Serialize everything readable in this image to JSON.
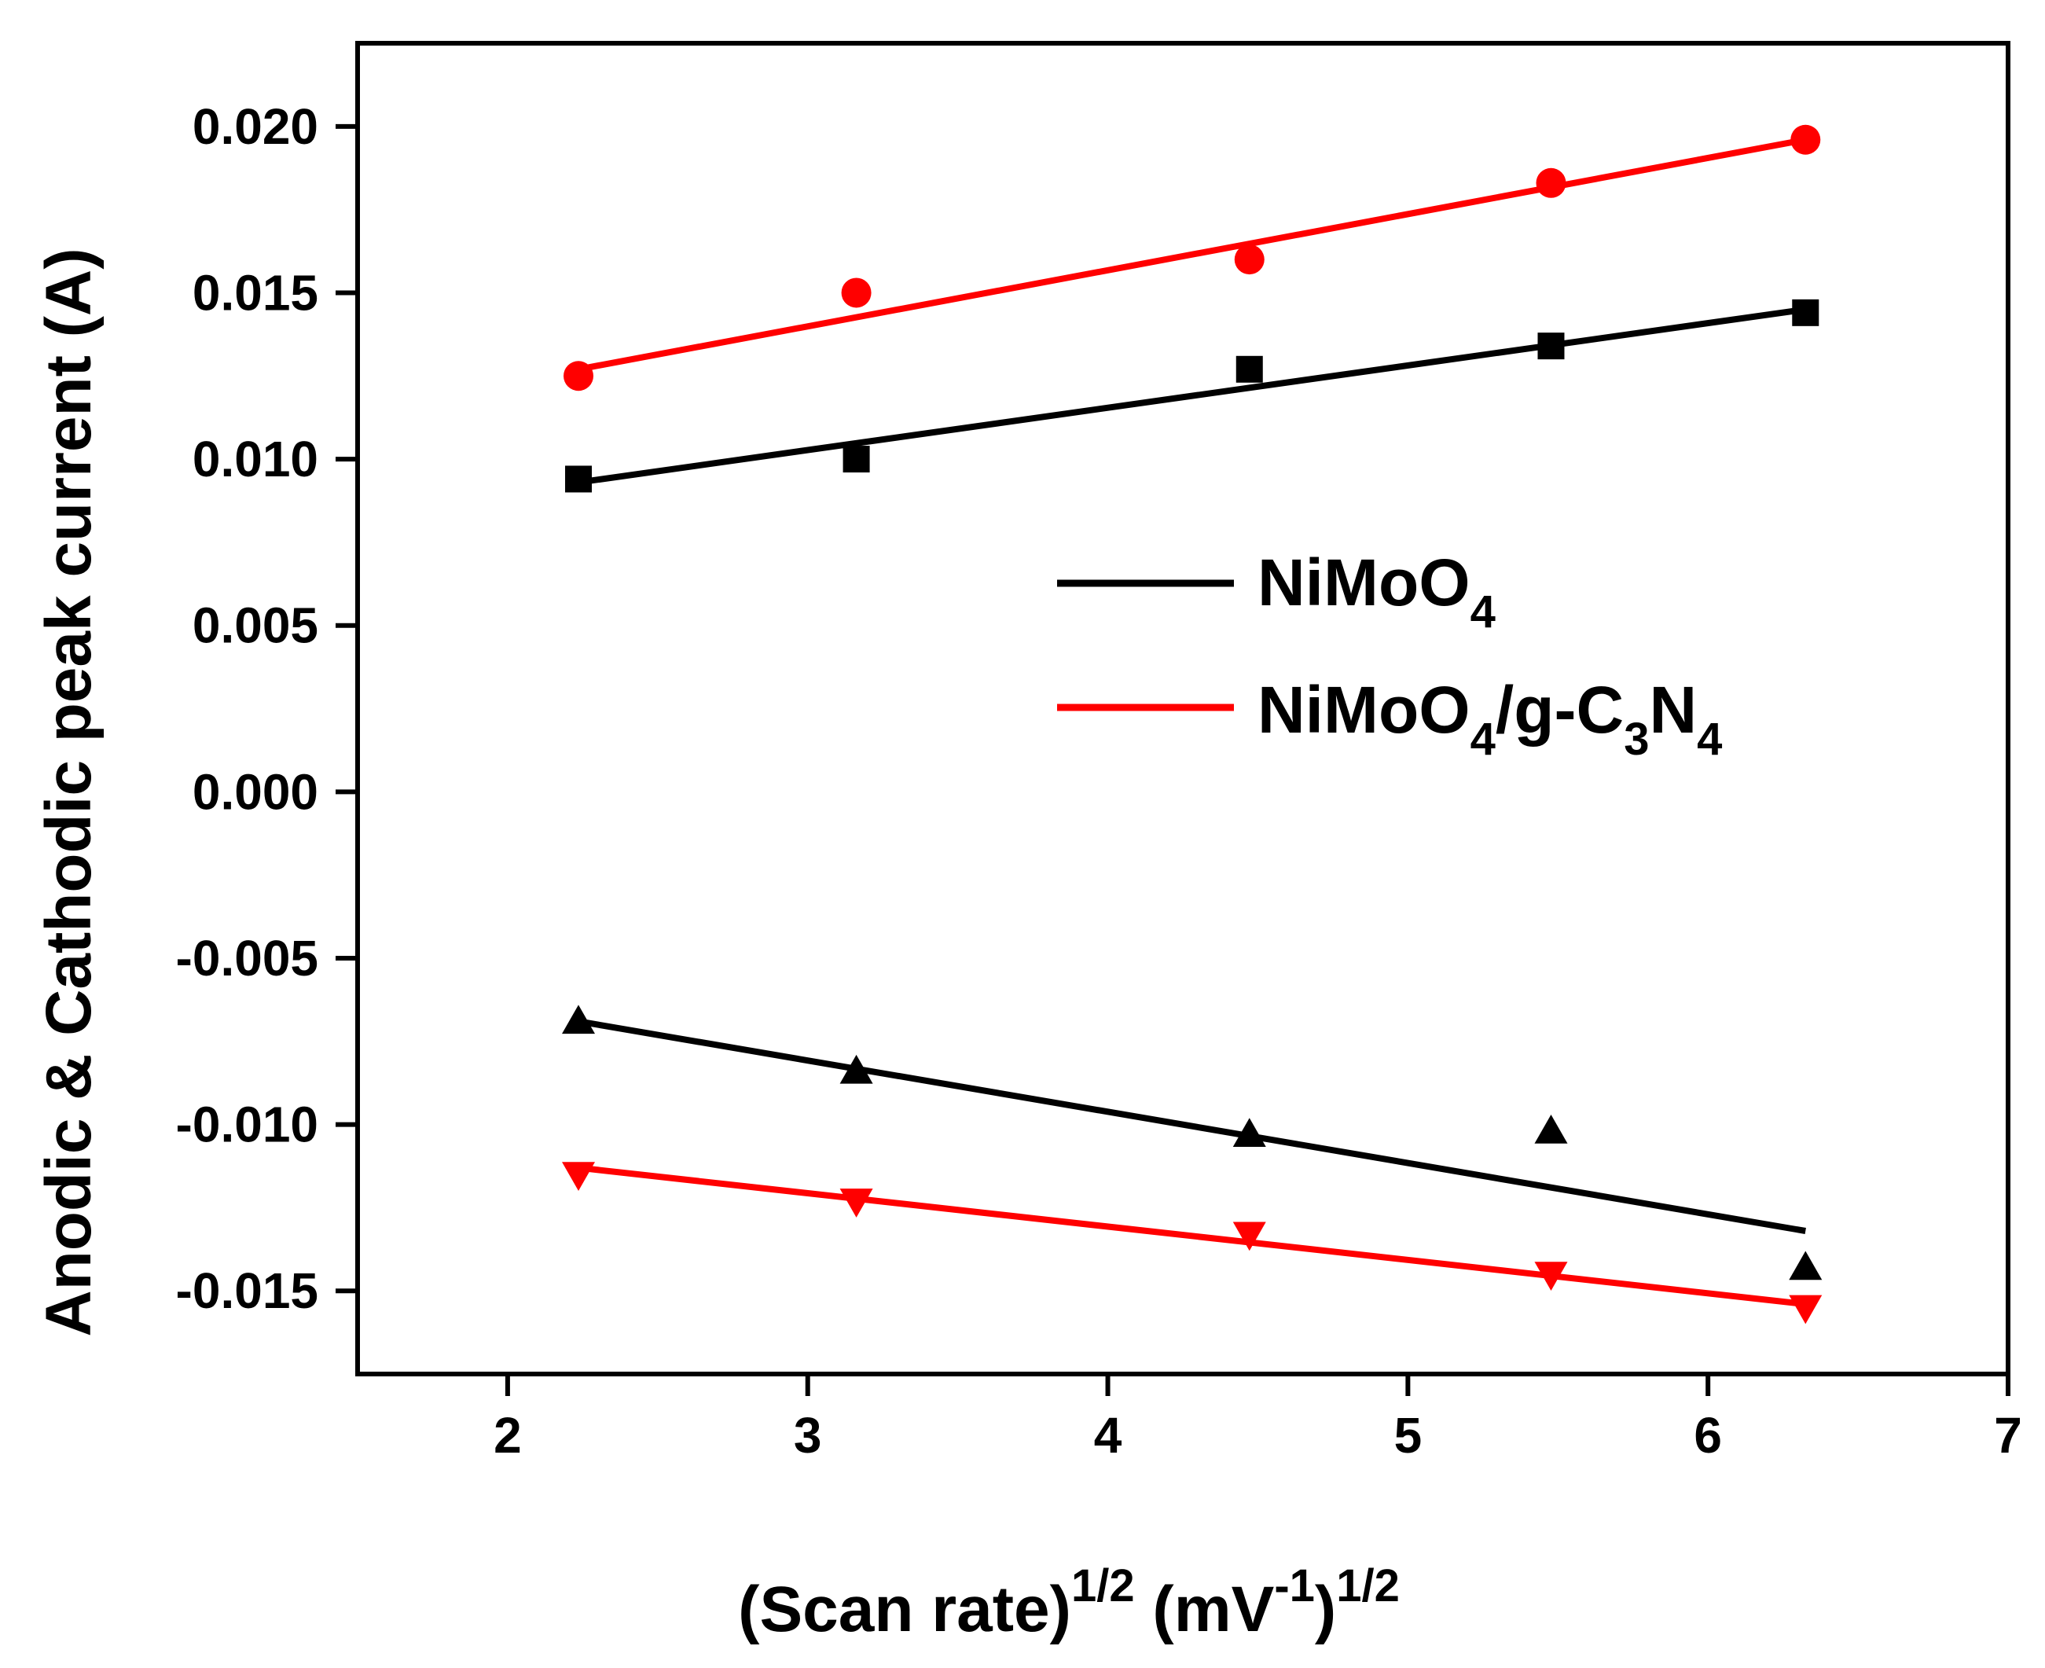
{
  "chart_data": {
    "type": "scatter",
    "title": "",
    "xlabel": {
      "main": "(Scan rate)",
      "sup1": "1/2",
      "unit": " (mV",
      "unit_sup": "-1",
      "close": ")",
      "sup2": "1/2"
    },
    "ylabel": "Anodic & Cathodic peak current (A)",
    "xlim": [
      1.5,
      7
    ],
    "ylim": [
      -0.0175,
      0.0225
    ],
    "x_ticks": [
      2,
      3,
      4,
      5,
      6,
      7
    ],
    "x_tick_labels": [
      "2",
      "3",
      "4",
      "5",
      "6",
      "7"
    ],
    "y_ticks": [
      -0.015,
      -0.01,
      -0.005,
      0.0,
      0.005,
      0.01,
      0.015,
      0.02
    ],
    "y_tick_labels": [
      "-0.015",
      "-0.010",
      "-0.005",
      "0.000",
      "0.005",
      "0.010",
      "0.015",
      "0.020"
    ],
    "grid": false,
    "legend_position": "center-right",
    "legend": [
      {
        "name": "NiMoO4",
        "parts": [
          "NiMoO",
          "4"
        ],
        "color": "#000000"
      },
      {
        "name": "NiMoO4/g-C3N4",
        "parts": [
          "NiMoO",
          "4",
          "/g-C",
          "3",
          "N",
          "4"
        ],
        "color": "#ff0000"
      }
    ],
    "series": [
      {
        "name": "NiMoO4 anodic",
        "marker": "square",
        "color": "#000000",
        "x": [
          2.236,
          3.162,
          4.472,
          5.477,
          6.325
        ],
        "y": [
          0.0094,
          0.01,
          0.0127,
          0.0134,
          0.0144
        ],
        "fit": [
          [
            2.236,
            0.0093
          ],
          [
            6.325,
            0.0145
          ]
        ]
      },
      {
        "name": "NiMoO4/g-C3N4 anodic",
        "marker": "circle",
        "color": "#ff0000",
        "x": [
          2.236,
          3.162,
          4.472,
          5.477,
          6.325
        ],
        "y": [
          0.0125,
          0.015,
          0.016,
          0.0183,
          0.0196
        ],
        "fit": [
          [
            2.236,
            0.0127
          ],
          [
            6.325,
            0.0196
          ]
        ]
      },
      {
        "name": "NiMoO4 cathodic",
        "marker": "triangle-up",
        "color": "#000000",
        "x": [
          2.236,
          3.162,
          4.472,
          5.477,
          6.325
        ],
        "y": [
          -0.0069,
          -0.0084,
          -0.0103,
          -0.0102,
          -0.0143
        ],
        "fit": [
          [
            2.236,
            -0.0069
          ],
          [
            6.325,
            -0.0132
          ]
        ]
      },
      {
        "name": "NiMoO4/g-C3N4 cathodic",
        "marker": "triangle-down",
        "color": "#ff0000",
        "x": [
          2.236,
          3.162,
          4.472,
          5.477,
          6.325
        ],
        "y": [
          -0.0115,
          -0.0123,
          -0.0133,
          -0.0145,
          -0.0155
        ],
        "fit": [
          [
            2.236,
            -0.0113
          ],
          [
            6.325,
            -0.0154
          ]
        ]
      }
    ]
  }
}
